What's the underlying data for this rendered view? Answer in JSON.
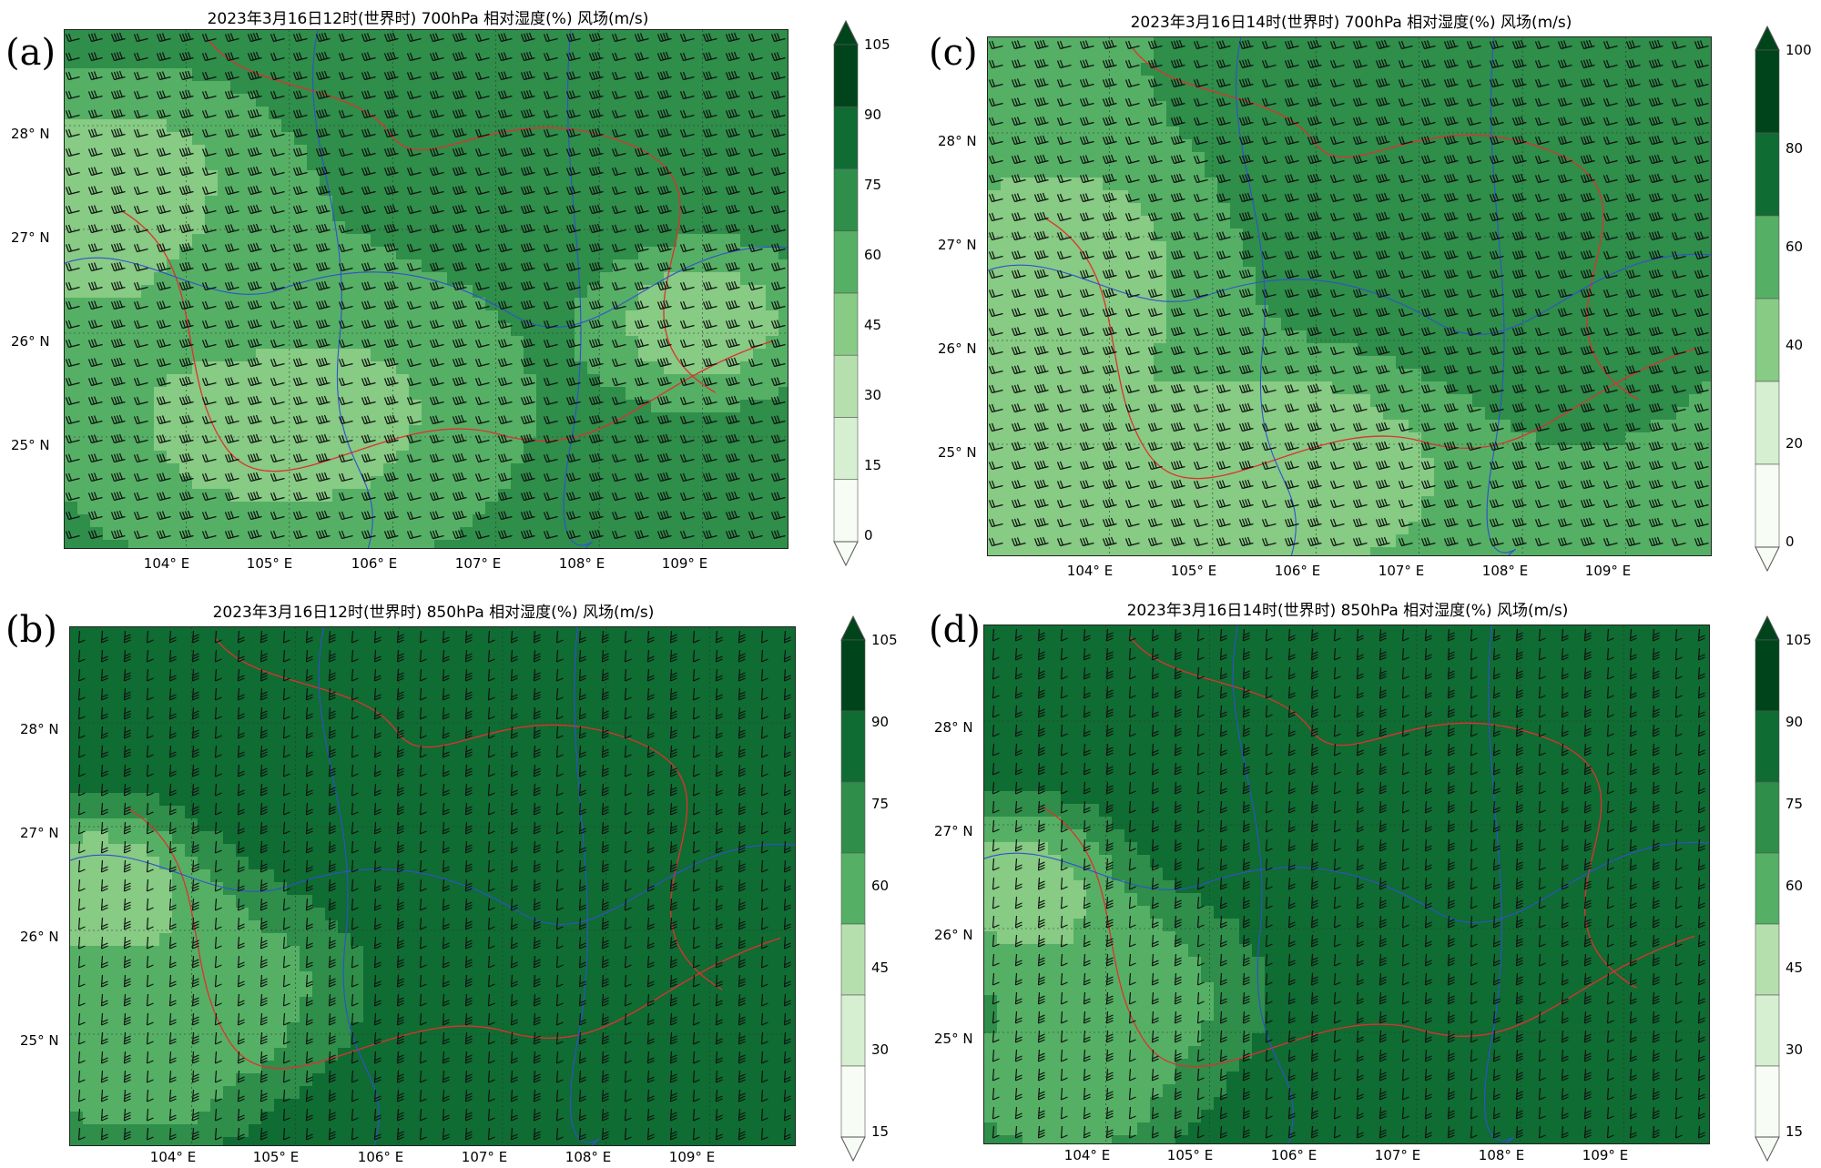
{
  "panels": [
    {
      "id": "a",
      "letter": "(a)",
      "title": "2023年3月16日12时(世界时) 700hPa 相对湿度(%) 风场(m/s)",
      "lat_labels": [
        "28° N",
        "27° N",
        "26° N",
        "25° N"
      ],
      "lon_labels": [
        "104° E",
        "105° E",
        "106° E",
        "107° E",
        "108° E",
        "109° E"
      ],
      "colorbar_ticks": [
        "105",
        "90",
        "75",
        "60",
        "45",
        "30",
        "15",
        "0"
      ]
    },
    {
      "id": "c",
      "letter": "(c)",
      "title": "2023年3月16日14时(世界时) 700hPa 相对湿度(%) 风场(m/s)",
      "lat_labels": [
        "28° N",
        "27° N",
        "26° N",
        "25° N"
      ],
      "lon_labels": [
        "104° E",
        "105° E",
        "106° E",
        "107° E",
        "108° E",
        "109° E"
      ],
      "colorbar_ticks": [
        "100",
        "80",
        "60",
        "40",
        "20",
        "0"
      ]
    },
    {
      "id": "b",
      "letter": "(b)",
      "title": "2023年3月16日12时(世界时) 850hPa 相对湿度(%) 风场(m/s)",
      "lat_labels": [
        "28° N",
        "27° N",
        "26° N",
        "25° N"
      ],
      "lon_labels": [
        "104° E",
        "105° E",
        "106° E",
        "107° E",
        "108° E",
        "109° E"
      ],
      "colorbar_ticks": [
        "105",
        "90",
        "75",
        "60",
        "45",
        "30",
        "15"
      ]
    },
    {
      "id": "d",
      "letter": "(d)",
      "title": "2023年3月16日14时(世界时) 850hPa 相对湿度(%) 风场(m/s)",
      "lat_labels": [
        "28° N",
        "27° N",
        "26° N",
        "25° N"
      ],
      "lon_labels": [
        "104° E",
        "105° E",
        "106° E",
        "107° E",
        "108° E",
        "109° E"
      ],
      "colorbar_ticks": [
        "105",
        "90",
        "75",
        "60",
        "45",
        "30",
        "15"
      ]
    }
  ],
  "palette": [
    "#f7fcf5",
    "#d6efd0",
    "#b5e0ad",
    "#87cb84",
    "#55b065",
    "#2e8e4a",
    "#0f6c32",
    "#00441b"
  ]
}
